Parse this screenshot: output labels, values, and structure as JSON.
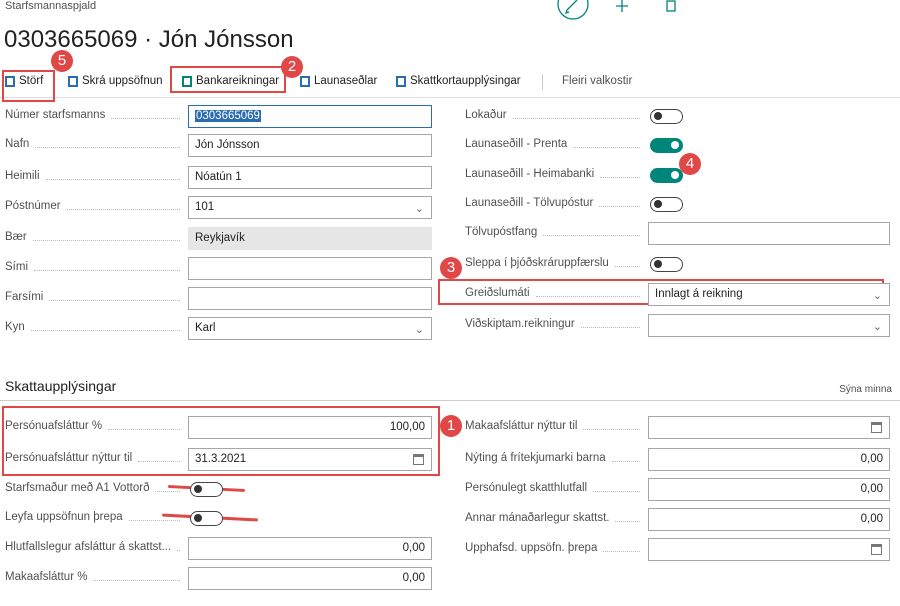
{
  "header": {
    "breadcrumb": "Starfsmannaspjald",
    "title": "0303665069 · Jón Jónsson"
  },
  "actions": [
    "Störf",
    "Skrá uppsöfnun",
    "Bankareikningar",
    "Launaseðlar",
    "Skattkortaupplýsingar",
    "Fleiri valkostir"
  ],
  "general": {
    "left": [
      {
        "label": "Númer starfsmanns",
        "value": "0303665069",
        "kind": "text",
        "selected": true
      },
      {
        "label": "Nafn",
        "value": "Jón Jónsson",
        "kind": "text"
      },
      {
        "label": "Heimili",
        "value": "Nóatún 1",
        "kind": "text"
      },
      {
        "label": "Póstnúmer",
        "value": "101",
        "kind": "select"
      },
      {
        "label": "Bær",
        "value": "Reykjavík",
        "kind": "readonly"
      },
      {
        "label": "Sími",
        "kind": "text"
      },
      {
        "label": "Farsími",
        "kind": "text"
      },
      {
        "label": "Kyn",
        "value": "Karl",
        "kind": "select"
      }
    ],
    "right": [
      {
        "label": "Lokaður",
        "kind": "toggle",
        "on": false
      },
      {
        "label": "Launaseðill - Prenta",
        "kind": "toggle",
        "on": true
      },
      {
        "label": "Launaseðill - Heimabanki",
        "kind": "toggle",
        "on": true
      },
      {
        "label": "Launaseðill - Tölvupóstur",
        "kind": "toggle",
        "on": false
      },
      {
        "label": "Tölvupóstfang",
        "kind": "text"
      },
      {
        "label": "Sleppa í þjóðskráruppfærslu",
        "kind": "toggle",
        "on": false
      },
      {
        "label": "Greiðslumáti",
        "value": "Innlagt á reikning",
        "kind": "select"
      },
      {
        "label": "Viðskiptam.reikningur",
        "kind": "select"
      }
    ]
  },
  "tax": {
    "title": "Skattaupplýsingar",
    "toggle": "Sýna minna",
    "left": [
      {
        "label": "Persónuafsláttur %",
        "value": "100,00",
        "kind": "number"
      },
      {
        "label": "Persónuafsláttur nýttur til",
        "value": "31.3.2021",
        "kind": "date"
      },
      {
        "label": "Starfsmaður með A1 Vottorð",
        "kind": "toggle",
        "on": false
      },
      {
        "label": "Leyfa uppsöfnun þrepa",
        "kind": "toggle",
        "on": false
      },
      {
        "label": "Hlutfallslegur afsláttur á skattst...",
        "value": "0,00",
        "kind": "number"
      },
      {
        "label": "Makaafsláttur %",
        "value": "0,00",
        "kind": "number"
      }
    ],
    "right": [
      {
        "label": "Makaafsláttur nýttur til",
        "kind": "date"
      },
      {
        "label": "Nýting á frítekjumarki barna",
        "value": "0,00",
        "kind": "number"
      },
      {
        "label": "Persónulegt skatthlutfall",
        "value": "0,00",
        "kind": "number"
      },
      {
        "label": "Annar mánaðarlegur skattst.",
        "value": "0,00",
        "kind": "number"
      },
      {
        "label": "Upphafsd. uppsöfn. þrepa",
        "kind": "date"
      }
    ]
  },
  "annotations": [
    "5",
    "2",
    "4",
    "3",
    "1"
  ]
}
